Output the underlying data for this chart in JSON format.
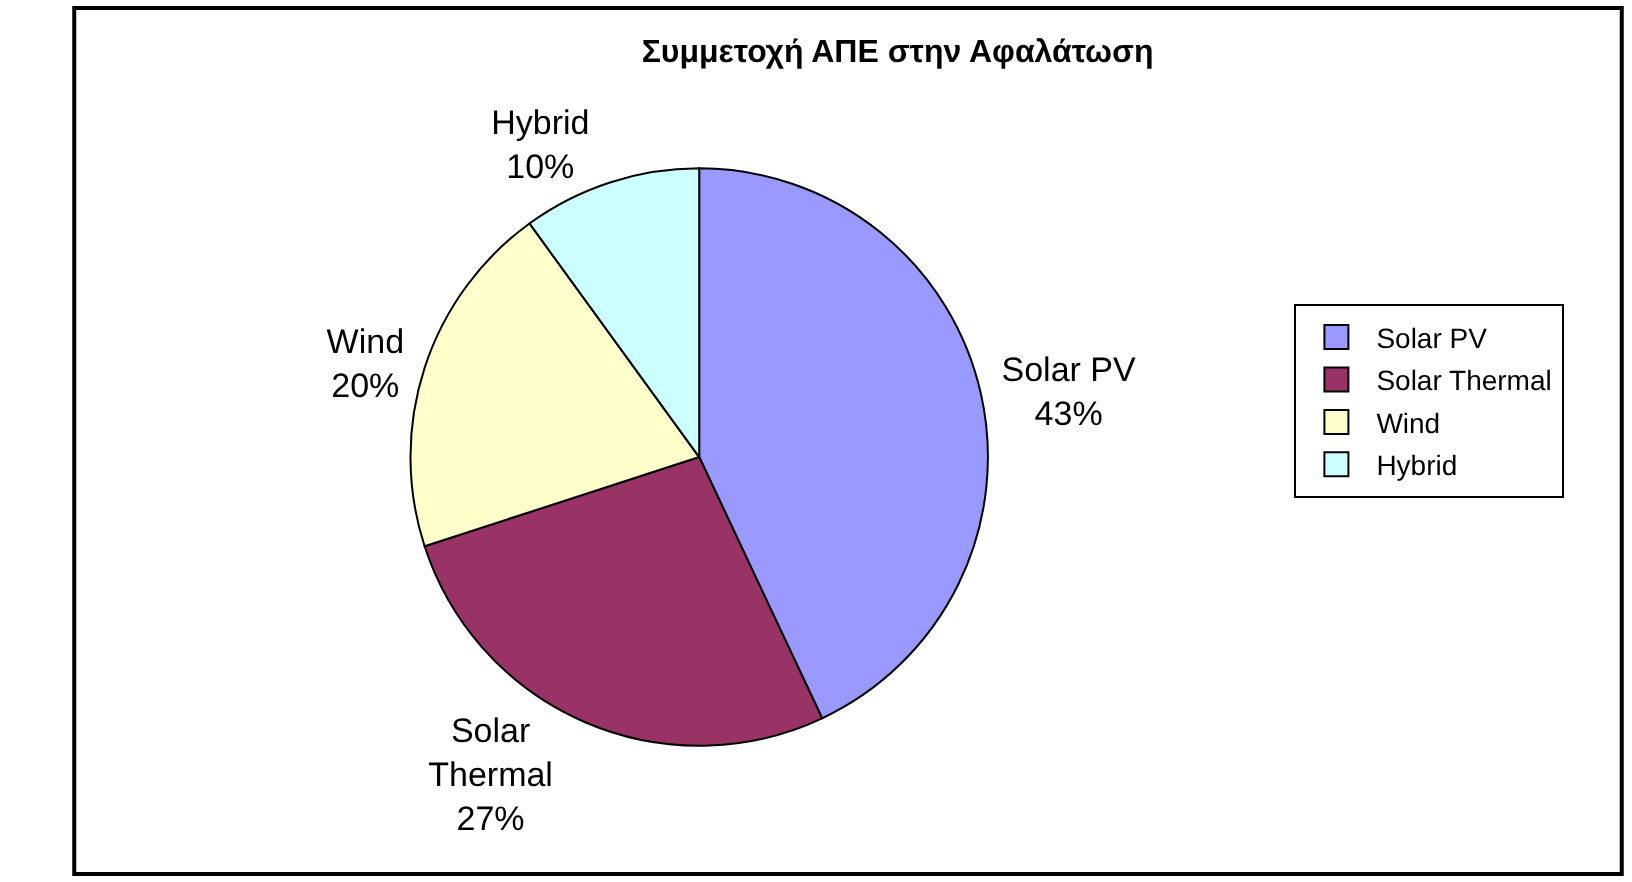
{
  "chart_data": {
    "type": "pie",
    "title": "Συμμετοχή ΑΠΕ στην Αφαλάτωση",
    "categories": [
      "Solar PV",
      "Solar Thermal",
      "Wind",
      "Hybrid"
    ],
    "values": [
      43,
      27,
      20,
      10
    ],
    "colors": [
      "#9999ff",
      "#993366",
      "#ffffcc",
      "#ccffff"
    ],
    "value_labels": [
      "43%",
      "27%",
      "20%",
      "10%"
    ],
    "legend": "right"
  }
}
